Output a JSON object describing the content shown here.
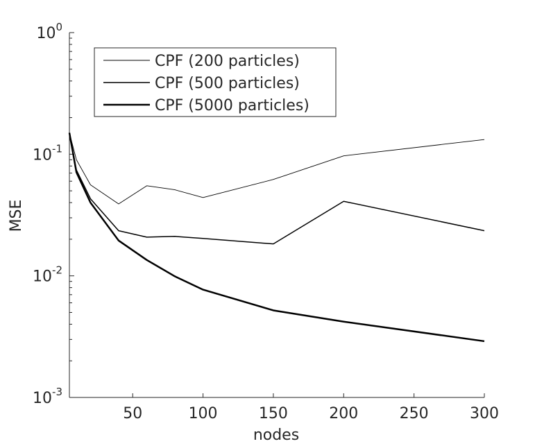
{
  "chart_data": {
    "type": "line",
    "title": "",
    "xlabel": "nodes",
    "ylabel": "MSE",
    "xscale": "linear",
    "yscale": "log",
    "xlim": [
      5,
      300
    ],
    "ylim": [
      0.001,
      1
    ],
    "xticks": [
      50,
      100,
      150,
      200,
      250,
      300
    ],
    "yticks": [
      {
        "value": 0.001,
        "base": "10",
        "exp": "-3"
      },
      {
        "value": 0.01,
        "base": "10",
        "exp": "-2"
      },
      {
        "value": 0.1,
        "base": "10",
        "exp": "-1"
      },
      {
        "value": 1,
        "base": "10",
        "exp": "0"
      }
    ],
    "grid": false,
    "legend_position": "top-left",
    "line_color": "#000000",
    "series": [
      {
        "name": "CPF (200 particles)",
        "weight": "thin",
        "x": [
          5,
          10,
          20,
          40,
          60,
          80,
          100,
          150,
          200,
          300
        ],
        "y": [
          0.15,
          0.09,
          0.056,
          0.039,
          0.055,
          0.051,
          0.044,
          0.062,
          0.097,
          0.132
        ]
      },
      {
        "name": "CPF (500 particles)",
        "weight": "medium",
        "x": [
          5,
          10,
          20,
          40,
          60,
          80,
          100,
          150,
          200,
          300
        ],
        "y": [
          0.15,
          0.074,
          0.043,
          0.0235,
          0.0208,
          0.0211,
          0.0203,
          0.0183,
          0.041,
          0.0235
        ]
      },
      {
        "name": "CPF (5000 particles)",
        "weight": "thick",
        "x": [
          5,
          10,
          20,
          40,
          60,
          80,
          100,
          150,
          200,
          300
        ],
        "y": [
          0.15,
          0.071,
          0.04,
          0.0195,
          0.0135,
          0.0099,
          0.0077,
          0.0052,
          0.0042,
          0.0029
        ]
      }
    ]
  }
}
